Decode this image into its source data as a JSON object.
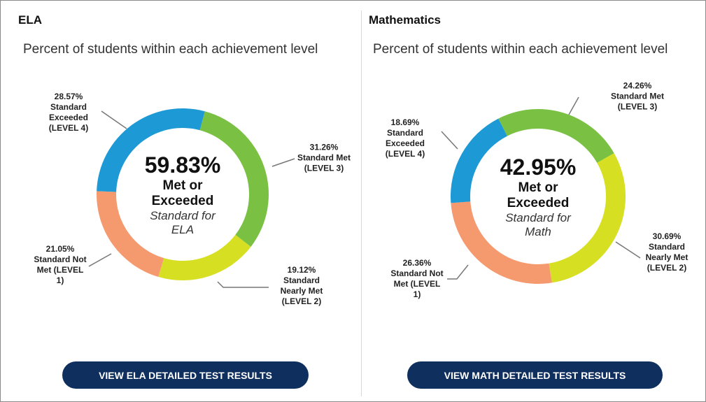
{
  "chart_data": [
    {
      "type": "donut",
      "title": "ELA",
      "subtitle": "Percent of students within each achievement level",
      "center_value": "59.83%",
      "center_text": "Met or Exceeded",
      "center_note": "Standard for ELA",
      "categories": [
        "Standard Met (LEVEL 3)",
        "Standard Nearly Met (LEVEL 2)",
        "Standard Not Met (LEVEL 1)",
        "Standard Exceeded (LEVEL 4)"
      ],
      "values": [
        31.26,
        19.12,
        21.05,
        28.57
      ],
      "value_labels": [
        "31.26%",
        "19.12%",
        "21.05%",
        "28.57%"
      ],
      "colors": [
        "#7ac143",
        "#d7df23",
        "#f5996e",
        "#1d9ad6"
      ],
      "button": "VIEW ELA DETAILED TEST RESULTS"
    },
    {
      "type": "donut",
      "title": "Mathematics",
      "subtitle": "Percent of students within each achievement level",
      "center_value": "42.95%",
      "center_text": "Met or Exceeded",
      "center_note": "Standard for Math",
      "categories": [
        "Standard Met (LEVEL 3)",
        "Standard Nearly Met (LEVEL 2)",
        "Standard Not Met (LEVEL 1)",
        "Standard Exceeded (LEVEL 4)"
      ],
      "values": [
        24.26,
        30.69,
        26.36,
        18.69
      ],
      "value_labels": [
        "24.26%",
        "30.69%",
        "26.36%",
        "18.69%"
      ],
      "colors": [
        "#7ac143",
        "#d7df23",
        "#f5996e",
        "#1d9ad6"
      ],
      "button": "VIEW MATH DETAILED TEST RESULTS"
    }
  ]
}
